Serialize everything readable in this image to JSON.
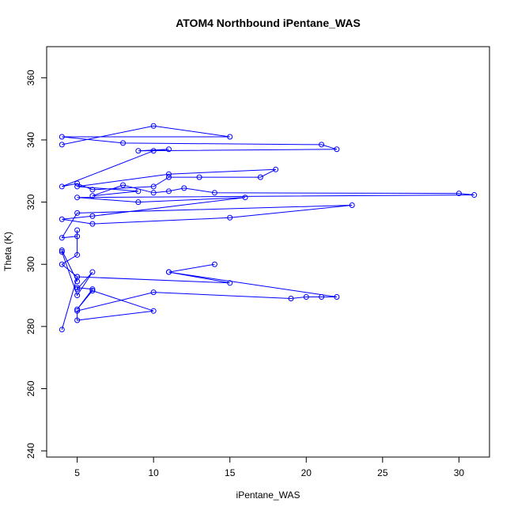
{
  "chart_data": {
    "type": "scatter",
    "title": "ATOM4 Northbound iPentane_WAS",
    "xlabel": "iPentane_WAS",
    "ylabel": "Theta (K)",
    "xlim": [
      3,
      32
    ],
    "ylim": [
      238,
      370
    ],
    "xticks": [
      5,
      10,
      15,
      20,
      25,
      30
    ],
    "yticks": [
      240,
      260,
      280,
      300,
      320,
      340,
      360
    ],
    "grid": false,
    "legend": "none",
    "series": [
      {
        "color": "#0000ff",
        "x": [
          4,
          10,
          15,
          4,
          8,
          21,
          22,
          9,
          11,
          10,
          4,
          5,
          6,
          10,
          11,
          13,
          17,
          18,
          11,
          5,
          9,
          6,
          8,
          10,
          11,
          12,
          14,
          30,
          31,
          5,
          9,
          16,
          6,
          4,
          6,
          15,
          23,
          5,
          4,
          5,
          5,
          5,
          4,
          5,
          5,
          4,
          4,
          5,
          6,
          5,
          5,
          6,
          5,
          6,
          10,
          5,
          5,
          10,
          19,
          20,
          21,
          22,
          11,
          14,
          11,
          15,
          5,
          4
        ],
        "y": [
          338.5,
          344.5,
          341,
          341,
          339,
          338.5,
          337,
          336.5,
          337,
          336.5,
          325,
          326,
          324,
          325,
          328,
          328,
          328,
          330.5,
          329,
          325,
          323.5,
          322,
          325.5,
          323,
          323.5,
          324.5,
          323,
          322.8,
          322.3,
          321.5,
          320,
          321.5,
          315.5,
          314.5,
          313,
          315,
          319,
          316.5,
          308.5,
          309,
          311,
          303,
          300,
          296,
          294.5,
          304.5,
          304,
          290,
          297.5,
          292,
          292.5,
          292,
          285.5,
          291.5,
          285,
          282,
          285,
          291,
          289,
          289.5,
          289.5,
          289.5,
          297.5,
          300,
          297.5,
          294,
          296,
          279
        ]
      }
    ]
  }
}
